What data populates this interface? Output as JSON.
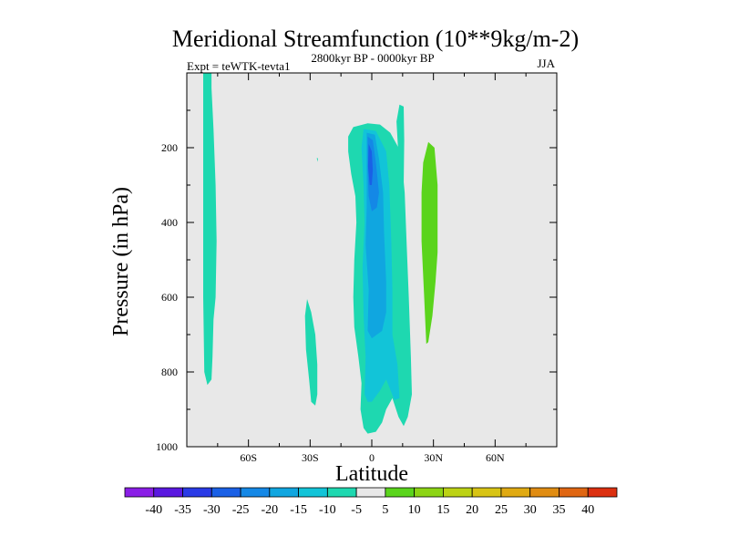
{
  "chart_data": {
    "type": "contour",
    "title": "Meridional Streamfunction (10**9kg/m-2)",
    "left_string": "Expt = teWTK-tevta1",
    "center_string": "2800kyr BP - 0000kyr BP",
    "right_string": "JJA",
    "xlabel": "Latitude",
    "ylabel": "Pressure (in hPa)",
    "xlim": [
      -90,
      90
    ],
    "ylim": [
      1000,
      0
    ],
    "x_ticks": [
      {
        "value": -60,
        "label": "60S"
      },
      {
        "value": -30,
        "label": "30S"
      },
      {
        "value": 0,
        "label": "0"
      },
      {
        "value": 30,
        "label": "30N"
      },
      {
        "value": 60,
        "label": "60N"
      }
    ],
    "y_ticks": [
      {
        "value": 200,
        "label": "200"
      },
      {
        "value": 400,
        "label": "400"
      },
      {
        "value": 600,
        "label": "600"
      },
      {
        "value": 800,
        "label": "800"
      },
      {
        "value": 1000,
        "label": "1000"
      }
    ],
    "background_color": "#e8e8e8",
    "levels": [
      {
        "range": "< -40",
        "color": "#8a1ee6"
      },
      {
        "range": "-40 to -35",
        "color": "#5a18e0"
      },
      {
        "range": "-35 to -30",
        "color": "#2a3ae6"
      },
      {
        "range": "-30 to -25",
        "color": "#1a60e6"
      },
      {
        "range": "-25 to -20",
        "color": "#1488e6"
      },
      {
        "range": "-20 to -15",
        "color": "#10a6e0"
      },
      {
        "range": "-15 to -10",
        "color": "#12c4d8"
      },
      {
        "range": "-10 to -5",
        "color": "#1ed8b0"
      },
      {
        "range": "-5 to 5",
        "color": "#e8e8e8"
      },
      {
        "range": "5 to 10",
        "color": "#5ad41c"
      },
      {
        "range": "10 to 15",
        "color": "#8cd414"
      },
      {
        "range": "15 to 20",
        "color": "#bcd214"
      },
      {
        "range": "20 to 25",
        "color": "#d8c414"
      },
      {
        "range": "25 to 30",
        "color": "#e0aa12"
      },
      {
        "range": "30 to 35",
        "color": "#e08c12"
      },
      {
        "range": "35 to 40",
        "color": "#e06612"
      },
      {
        "range": "> 40",
        "color": "#dc3010"
      }
    ],
    "colorbar_labels": [
      "-40",
      "-35",
      "-30",
      "-25",
      "-20",
      "-15",
      "-10",
      "-5",
      "5",
      "10",
      "15",
      "20",
      "25",
      "30",
      "35",
      "40"
    ],
    "regions": [
      {
        "name": "polar-south-cell",
        "level": "-10 to -5",
        "color": "#1ed8b0",
        "outline": [
          [
            -82,
            0
          ],
          [
            -78,
            0
          ],
          [
            -78,
            40
          ],
          [
            -77,
            150
          ],
          [
            -76,
            300
          ],
          [
            -75.5,
            450
          ],
          [
            -76,
            600
          ],
          [
            -77,
            660
          ],
          [
            -77.5,
            760
          ],
          [
            -78,
            820
          ],
          [
            -80,
            835
          ],
          [
            -81.5,
            800
          ],
          [
            -82,
            600
          ],
          [
            -82,
            300
          ],
          [
            -82,
            100
          ]
        ]
      },
      {
        "name": "midlat-south-blob",
        "level": "-10 to -5",
        "color": "#1ed8b0",
        "outline": [
          [
            -31.5,
            605
          ],
          [
            -29.5,
            640
          ],
          [
            -27.5,
            700
          ],
          [
            -26.5,
            780
          ],
          [
            -26.5,
            860
          ],
          [
            -27.5,
            890
          ],
          [
            -29.5,
            880
          ],
          [
            -30.5,
            820
          ],
          [
            -32,
            740
          ],
          [
            -32.5,
            650
          ]
        ]
      },
      {
        "name": "tropical-cell-outer",
        "level": "-10 to -5",
        "color": "#1ed8b0",
        "outline": [
          [
            -11.5,
            170
          ],
          [
            -9,
            145
          ],
          [
            -2,
            135
          ],
          [
            4,
            138
          ],
          [
            9,
            160
          ],
          [
            13,
            200
          ],
          [
            15,
            260
          ],
          [
            16,
            320
          ],
          [
            17,
            460
          ],
          [
            18,
            600
          ],
          [
            19,
            760
          ],
          [
            19.5,
            860
          ],
          [
            17.5,
            920
          ],
          [
            15.5,
            945
          ],
          [
            13,
            920
          ],
          [
            10,
            870
          ],
          [
            7,
            900
          ],
          [
            5,
            935
          ],
          [
            2,
            960
          ],
          [
            -2,
            965
          ],
          [
            -4,
            950
          ],
          [
            -5.5,
            900
          ],
          [
            -5,
            830
          ],
          [
            -6.5,
            760
          ],
          [
            -8.5,
            680
          ],
          [
            -9,
            600
          ],
          [
            -8.5,
            500
          ],
          [
            -7.5,
            400
          ],
          [
            -8,
            330
          ],
          [
            -10,
            270
          ],
          [
            -11.5,
            210
          ]
        ]
      },
      {
        "name": "tropical-arm-north",
        "level": "-10 to -5",
        "color": "#1ed8b0",
        "outline": [
          [
            12,
            130
          ],
          [
            13.5,
            85
          ],
          [
            15.5,
            90
          ],
          [
            15.8,
            180
          ],
          [
            15.5,
            300
          ],
          [
            15.6,
            450
          ],
          [
            14,
            320
          ]
        ]
      },
      {
        "name": "tropical-cell-level2",
        "level": "-15 to -10",
        "color": "#12c4d8",
        "outline": [
          [
            -4,
            150
          ],
          [
            2,
            155
          ],
          [
            7,
            210
          ],
          [
            8.5,
            300
          ],
          [
            9.5,
            450
          ],
          [
            10,
            580
          ],
          [
            10,
            700
          ],
          [
            12.5,
            780
          ],
          [
            13.5,
            870
          ],
          [
            11,
            875
          ],
          [
            7,
            820
          ],
          [
            4,
            850
          ],
          [
            0,
            880
          ],
          [
            -2,
            880
          ],
          [
            -3.5,
            860
          ],
          [
            -3,
            760
          ],
          [
            -4,
            650
          ],
          [
            -4.5,
            520
          ],
          [
            -3.5,
            400
          ],
          [
            -4,
            300
          ],
          [
            -5,
            200
          ]
        ]
      },
      {
        "name": "tropical-cell-level3",
        "level": "-20 to -15",
        "color": "#10a6e0",
        "outline": [
          [
            -2.5,
            160
          ],
          [
            1.5,
            165
          ],
          [
            3.5,
            230
          ],
          [
            5.5,
            320
          ],
          [
            6,
            430
          ],
          [
            7,
            560
          ],
          [
            7,
            640
          ],
          [
            5,
            690
          ],
          [
            2.5,
            700
          ],
          [
            0,
            710
          ],
          [
            -2,
            690
          ],
          [
            -1.5,
            580
          ],
          [
            -3,
            460
          ],
          [
            -2.5,
            360
          ],
          [
            -2.5,
            260
          ]
        ]
      },
      {
        "name": "tropical-cell-level4",
        "level": "-25 to -20",
        "color": "#1488e6",
        "outline": [
          [
            -2,
            170
          ],
          [
            0.5,
            180
          ],
          [
            2,
            240
          ],
          [
            3.5,
            320
          ],
          [
            2.5,
            360
          ],
          [
            0,
            370
          ],
          [
            -1.5,
            330
          ],
          [
            -2,
            260
          ]
        ]
      },
      {
        "name": "tropical-cell-core",
        "level": "-30 to -25",
        "color": "#1a60e6",
        "outline": [
          [
            -1.5,
            190
          ],
          [
            0,
            210
          ],
          [
            0.5,
            260
          ],
          [
            0,
            300
          ],
          [
            -1,
            300
          ],
          [
            -1.8,
            250
          ]
        ]
      },
      {
        "name": "subtropical-north-cell",
        "level": "5 to 10",
        "color": "#5ad41c",
        "outline": [
          [
            25,
            240
          ],
          [
            27.5,
            185
          ],
          [
            30.5,
            200
          ],
          [
            32,
            300
          ],
          [
            32,
            480
          ],
          [
            31,
            560
          ],
          [
            29.5,
            650
          ],
          [
            27.5,
            720
          ],
          [
            26.5,
            725
          ],
          [
            25.5,
            600
          ],
          [
            24.2,
            450
          ],
          [
            24.2,
            320
          ]
        ]
      },
      {
        "name": "speck-30S",
        "level": "-10 to -5",
        "color": "#1ed8b0",
        "outline": [
          [
            -26.8,
            228
          ],
          [
            -26.2,
            228
          ],
          [
            -26.3,
            238
          ]
        ]
      }
    ]
  }
}
